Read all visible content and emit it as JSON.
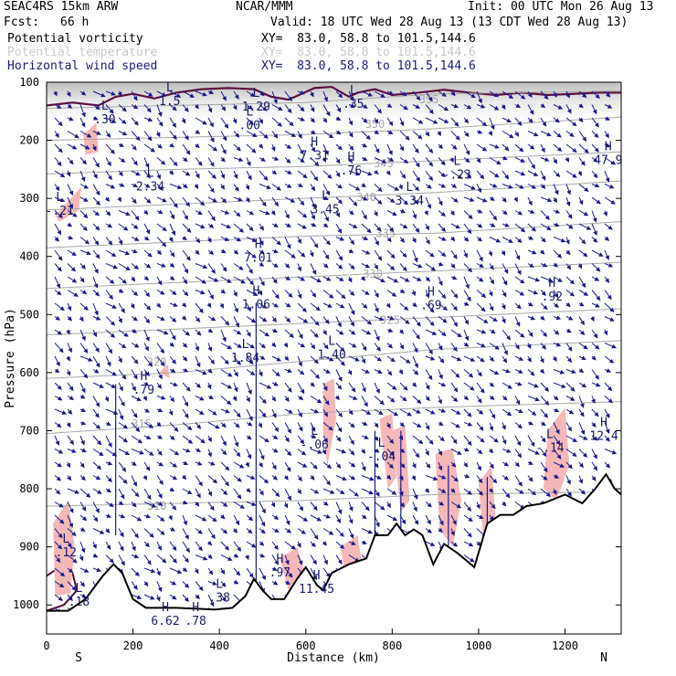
{
  "header": {
    "model": "SEAC4RS 15km ARW",
    "org": "NCAR/MMM",
    "init": "Init: 00 UTC Mon 26 Aug 13",
    "fcst_label": "Fcst:",
    "fcst_value": "66 h",
    "valid": "Valid: 18 UTC Wed 28 Aug 13 (13 CDT Wed 28 Aug 13)"
  },
  "fields": [
    {
      "name": "Potential vorticity",
      "xy": "XY=  83.0, 58.8 to 101.5,144.6",
      "color": "#000000"
    },
    {
      "name": "Potential temperature",
      "xy": "XY=  83.0, 58.8 to 101.5,144.6",
      "color": "#c8c8c8"
    },
    {
      "name": "Horizontal wind speed",
      "xy": "XY=  83.0, 58.8 to 101.5,144.6",
      "color": "#1a1a7a"
    }
  ],
  "colors": {
    "pv_fill": "#f4b8b8",
    "pv_high": "#5a1040",
    "theta": "#a8a8a8",
    "wind": "#1a1a8a",
    "terrain": "#000000"
  },
  "chart_data": {
    "type": "cross-section",
    "xlabel": "Distance (km)",
    "ylabel": "Pressure (hPa)",
    "xlim": [
      0,
      1330
    ],
    "ylim": [
      1050,
      100
    ],
    "x_ticks": [
      "0",
      "200",
      "400",
      "600",
      "800",
      "1000",
      "1200"
    ],
    "y_ticks": [
      "100",
      "200",
      "300",
      "400",
      "500",
      "600",
      "700",
      "800",
      "900",
      "1000"
    ],
    "endpoints": {
      "left": "S",
      "right": "N"
    },
    "terrain": [
      [
        0,
        1010
      ],
      [
        50,
        1010
      ],
      [
        90,
        990
      ],
      [
        130,
        950
      ],
      [
        155,
        930
      ],
      [
        175,
        945
      ],
      [
        200,
        990
      ],
      [
        230,
        1005
      ],
      [
        300,
        1005
      ],
      [
        390,
        1008
      ],
      [
        430,
        1005
      ],
      [
        460,
        985
      ],
      [
        480,
        955
      ],
      [
        500,
        975
      ],
      [
        520,
        990
      ],
      [
        550,
        990
      ],
      [
        580,
        955
      ],
      [
        600,
        935
      ],
      [
        625,
        965
      ],
      [
        640,
        975
      ],
      [
        660,
        945
      ],
      [
        700,
        930
      ],
      [
        740,
        920
      ],
      [
        760,
        880
      ],
      [
        790,
        880
      ],
      [
        810,
        860
      ],
      [
        830,
        880
      ],
      [
        850,
        870
      ],
      [
        870,
        880
      ],
      [
        895,
        930
      ],
      [
        920,
        895
      ],
      [
        950,
        910
      ],
      [
        990,
        935
      ],
      [
        1020,
        860
      ],
      [
        1050,
        845
      ],
      [
        1080,
        845
      ],
      [
        1110,
        830
      ],
      [
        1150,
        825
      ],
      [
        1200,
        810
      ],
      [
        1240,
        825
      ],
      [
        1270,
        800
      ],
      [
        1295,
        775
      ],
      [
        1315,
        800
      ],
      [
        1330,
        810
      ]
    ],
    "theta_contours": [
      {
        "label": "355",
        "pts": [
          [
            0,
            145
          ],
          [
            300,
            140
          ],
          [
            600,
            135
          ],
          [
            900,
            120
          ],
          [
            1330,
            115
          ]
        ]
      },
      {
        "label": "350",
        "pts": [
          [
            0,
            200
          ],
          [
            300,
            195
          ],
          [
            600,
            190
          ],
          [
            900,
            180
          ],
          [
            1330,
            160
          ]
        ]
      },
      {
        "label": "345",
        "pts": [
          [
            0,
            258
          ],
          [
            300,
            250
          ],
          [
            600,
            245
          ],
          [
            900,
            235
          ],
          [
            1330,
            220
          ]
        ]
      },
      {
        "label": "340",
        "pts": [
          [
            0,
            320
          ],
          [
            300,
            310
          ],
          [
            600,
            300
          ],
          [
            900,
            290
          ],
          [
            1330,
            270
          ]
        ]
      },
      {
        "label": "335",
        "pts": [
          [
            0,
            385
          ],
          [
            300,
            375
          ],
          [
            600,
            365
          ],
          [
            900,
            360
          ],
          [
            1330,
            340
          ]
        ]
      },
      {
        "label": "330",
        "pts": [
          [
            0,
            455
          ],
          [
            300,
            445
          ],
          [
            600,
            435
          ],
          [
            900,
            425
          ],
          [
            1330,
            410
          ]
        ]
      },
      {
        "label": "325",
        "pts": [
          [
            0,
            535
          ],
          [
            300,
            525
          ],
          [
            600,
            515
          ],
          [
            900,
            505
          ],
          [
            1330,
            490
          ]
        ]
      },
      {
        "label": "320",
        "pts": [
          [
            0,
            610
          ],
          [
            300,
            600
          ],
          [
            600,
            580
          ],
          [
            900,
            560
          ],
          [
            1330,
            545
          ]
        ]
      },
      {
        "label": "315",
        "pts": [
          [
            0,
            705
          ],
          [
            300,
            690
          ],
          [
            600,
            670
          ],
          [
            900,
            660
          ],
          [
            1330,
            650
          ]
        ]
      },
      {
        "label": "310",
        "pts": [
          [
            0,
            830
          ],
          [
            300,
            825
          ],
          [
            600,
            820
          ],
          [
            900,
            810
          ],
          [
            1330,
            805
          ]
        ]
      }
    ],
    "theta_labels": [
      {
        "text": "355",
        "x": 885,
        "y": 130
      },
      {
        "text": "350",
        "x": 760,
        "y": 172
      },
      {
        "text": "345",
        "x": 780,
        "y": 240
      },
      {
        "text": "340",
        "x": 740,
        "y": 298
      },
      {
        "text": "335",
        "x": 785,
        "y": 360
      },
      {
        "text": "330",
        "x": 755,
        "y": 430
      },
      {
        "text": "325",
        "x": 795,
        "y": 510
      },
      {
        "text": "320",
        "x": 255,
        "y": 582
      },
      {
        "text": "315",
        "x": 220,
        "y": 688
      },
      {
        "text": "310",
        "x": 255,
        "y": 830
      }
    ],
    "extrema": [
      {
        "kind": "L",
        "value": "1.5",
        "x": 285,
        "y": 128
      },
      {
        "kind": "L",
        "value": "1.29",
        "x": 485,
        "y": 138
      },
      {
        "kind": "L",
        "value": ".35",
        "x": 710,
        "y": 133
      },
      {
        "kind": "L",
        "value": ".30",
        "x": 135,
        "y": 160
      },
      {
        "kind": "L",
        "value": ".00",
        "x": 470,
        "y": 170
      },
      {
        "kind": "H",
        "value": "7.31",
        "x": 620,
        "y": 222
      },
      {
        "kind": "H",
        "value": ".76",
        "x": 705,
        "y": 248
      },
      {
        "kind": "L",
        "value": "-.23",
        "x": 950,
        "y": 255
      },
      {
        "kind": "H",
        "value": "47.9",
        "x": 1300,
        "y": 230
      },
      {
        "kind": "L",
        "value": "2.34",
        "x": 240,
        "y": 275
      },
      {
        "kind": "L",
        "value": "3.34",
        "x": 840,
        "y": 300
      },
      {
        "kind": "L",
        "value": "3.45",
        "x": 645,
        "y": 315
      },
      {
        "kind": "L",
        "value": "-.21",
        "x": 30,
        "y": 317
      },
      {
        "kind": "H",
        "value": "7.01",
        "x": 490,
        "y": 398
      },
      {
        "kind": "H",
        "value": ".92",
        "x": 1170,
        "y": 465
      },
      {
        "kind": "H",
        "value": "1.06",
        "x": 485,
        "y": 478
      },
      {
        "kind": "H",
        "value": ".69",
        "x": 890,
        "y": 480
      },
      {
        "kind": "L",
        "value": "1.40",
        "x": 660,
        "y": 565
      },
      {
        "kind": "L",
        "value": "1.84",
        "x": 460,
        "y": 570
      },
      {
        "kind": "H",
        "value": ".79",
        "x": 225,
        "y": 625
      },
      {
        "kind": "L",
        "value": "-.06",
        "x": 620,
        "y": 720
      },
      {
        "kind": "L",
        "value": "-.04",
        "x": 775,
        "y": 740
      },
      {
        "kind": "L",
        "value": "-.14",
        "x": 1165,
        "y": 725
      },
      {
        "kind": "H",
        "value": "12.4",
        "x": 1290,
        "y": 705
      },
      {
        "kind": "L",
        "value": ".12",
        "x": 45,
        "y": 905
      },
      {
        "kind": "H",
        "value": ".97",
        "x": 540,
        "y": 940
      },
      {
        "kind": "H",
        "value": "11.45",
        "x": 625,
        "y": 968
      },
      {
        "kind": "L",
        "value": ".38",
        "x": 400,
        "y": 983
      },
      {
        "kind": "L",
        "value": ".18",
        "x": 75,
        "y": 990
      },
      {
        "kind": "H",
        "value": "6.62",
        "x": 275,
        "y": 1023
      },
      {
        "kind": "H",
        "value": ".78",
        "x": 345,
        "y": 1023
      }
    ],
    "pv_positive_regions": [
      [
        [
          15,
          860
        ],
        [
          50,
          820
        ],
        [
          65,
          900
        ],
        [
          55,
          980
        ],
        [
          20,
          985
        ]
      ],
      [
        [
          85,
          190
        ],
        [
          115,
          170
        ],
        [
          120,
          220
        ],
        [
          90,
          225
        ]
      ],
      [
        [
          20,
          330
        ],
        [
          80,
          280
        ],
        [
          75,
          320
        ],
        [
          30,
          340
        ]
      ],
      [
        [
          260,
          600
        ],
        [
          280,
          585
        ],
        [
          285,
          610
        ]
      ],
      [
        [
          640,
          620
        ],
        [
          665,
          610
        ],
        [
          670,
          680
        ],
        [
          650,
          760
        ],
        [
          640,
          700
        ]
      ],
      [
        [
          770,
          680
        ],
        [
          800,
          670
        ],
        [
          810,
          780
        ],
        [
          790,
          800
        ]
      ],
      [
        [
          800,
          700
        ],
        [
          830,
          690
        ],
        [
          840,
          820
        ],
        [
          820,
          840
        ]
      ],
      [
        [
          900,
          740
        ],
        [
          940,
          730
        ],
        [
          960,
          820
        ],
        [
          940,
          900
        ],
        [
          910,
          870
        ]
      ],
      [
        [
          1000,
          790
        ],
        [
          1030,
          760
        ],
        [
          1040,
          860
        ],
        [
          1010,
          880
        ]
      ],
      [
        [
          1160,
          700
        ],
        [
          1200,
          660
        ],
        [
          1210,
          760
        ],
        [
          1180,
          820
        ],
        [
          1150,
          800
        ]
      ],
      [
        [
          540,
          920
        ],
        [
          580,
          900
        ],
        [
          600,
          955
        ],
        [
          560,
          975
        ]
      ],
      [
        [
          680,
          900
        ],
        [
          720,
          880
        ],
        [
          730,
          930
        ],
        [
          690,
          945
        ]
      ]
    ]
  }
}
